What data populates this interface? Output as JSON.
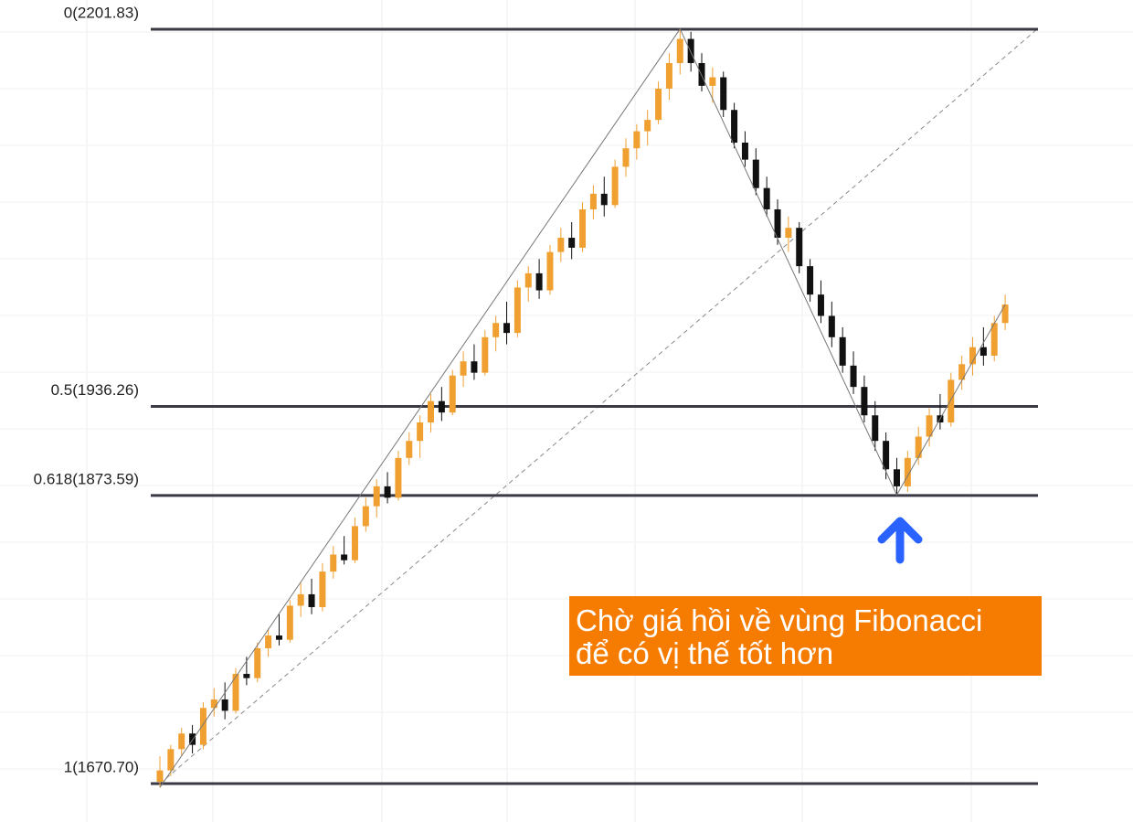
{
  "chart_data": {
    "type": "candlestick",
    "ylim": [
      1643.7,
      2222.4
    ],
    "up_color": "#f0a030",
    "down_color": "#111111",
    "levels": [
      {
        "value": 2201.83,
        "label": "0(2201.83)"
      },
      {
        "value": 1936.26,
        "label": "0.5(1936.26)"
      },
      {
        "value": 1873.59,
        "label": "0.618(1873.59)"
      },
      {
        "value": 1670.7,
        "label": "1(1670.70)"
      }
    ],
    "level_color": "#3a3a44",
    "annotation": [
      "Chờ giá hồi về vùng Fibonacci",
      "để có vị thế tốt hơn"
    ],
    "annotation_color": "#f57c00",
    "candles": [
      [
        1672,
        1690,
        1668,
        1680
      ],
      [
        1680,
        1698,
        1676,
        1695
      ],
      [
        1695,
        1710,
        1690,
        1706
      ],
      [
        1706,
        1712,
        1692,
        1698
      ],
      [
        1698,
        1728,
        1695,
        1724
      ],
      [
        1724,
        1738,
        1718,
        1730
      ],
      [
        1730,
        1742,
        1716,
        1722
      ],
      [
        1722,
        1752,
        1720,
        1748
      ],
      [
        1748,
        1760,
        1740,
        1745
      ],
      [
        1745,
        1770,
        1742,
        1766
      ],
      [
        1766,
        1780,
        1760,
        1775
      ],
      [
        1775,
        1790,
        1768,
        1772
      ],
      [
        1772,
        1800,
        1770,
        1796
      ],
      [
        1796,
        1812,
        1788,
        1804
      ],
      [
        1804,
        1815,
        1790,
        1795
      ],
      [
        1795,
        1826,
        1792,
        1820
      ],
      [
        1820,
        1838,
        1815,
        1832
      ],
      [
        1832,
        1845,
        1825,
        1828
      ],
      [
        1828,
        1858,
        1826,
        1852
      ],
      [
        1852,
        1872,
        1848,
        1866
      ],
      [
        1866,
        1885,
        1858,
        1880
      ],
      [
        1880,
        1890,
        1868,
        1872
      ],
      [
        1872,
        1905,
        1870,
        1900
      ],
      [
        1900,
        1918,
        1895,
        1912
      ],
      [
        1912,
        1930,
        1900,
        1925
      ],
      [
        1925,
        1945,
        1918,
        1940
      ],
      [
        1940,
        1950,
        1926,
        1932
      ],
      [
        1932,
        1962,
        1930,
        1958
      ],
      [
        1958,
        1975,
        1950,
        1968
      ],
      [
        1968,
        1980,
        1955,
        1960
      ],
      [
        1960,
        1990,
        1958,
        1985
      ],
      [
        1985,
        2000,
        1975,
        1995
      ],
      [
        1995,
        2010,
        1980,
        1988
      ],
      [
        1988,
        2025,
        1985,
        2020
      ],
      [
        2020,
        2035,
        2010,
        2030
      ],
      [
        2030,
        2040,
        2012,
        2018
      ],
      [
        2018,
        2050,
        2015,
        2045
      ],
      [
        2045,
        2062,
        2038,
        2055
      ],
      [
        2055,
        2066,
        2040,
        2048
      ],
      [
        2048,
        2080,
        2045,
        2075
      ],
      [
        2075,
        2092,
        2068,
        2086
      ],
      [
        2086,
        2098,
        2070,
        2078
      ],
      [
        2078,
        2110,
        2076,
        2105
      ],
      [
        2105,
        2125,
        2098,
        2118
      ],
      [
        2118,
        2135,
        2110,
        2130
      ],
      [
        2130,
        2145,
        2120,
        2138
      ],
      [
        2138,
        2165,
        2135,
        2160
      ],
      [
        2160,
        2185,
        2152,
        2178
      ],
      [
        2178,
        2202,
        2170,
        2195
      ],
      [
        2195,
        2200,
        2172,
        2178
      ],
      [
        2178,
        2185,
        2158,
        2162
      ],
      [
        2162,
        2175,
        2150,
        2168
      ],
      [
        2168,
        2172,
        2140,
        2145
      ],
      [
        2145,
        2150,
        2118,
        2122
      ],
      [
        2122,
        2130,
        2105,
        2110
      ],
      [
        2110,
        2118,
        2085,
        2090
      ],
      [
        2090,
        2098,
        2070,
        2075
      ],
      [
        2075,
        2082,
        2050,
        2055
      ],
      [
        2055,
        2070,
        2045,
        2062
      ],
      [
        2062,
        2066,
        2030,
        2035
      ],
      [
        2035,
        2040,
        2010,
        2015
      ],
      [
        2015,
        2025,
        1995,
        2000
      ],
      [
        2000,
        2010,
        1978,
        1985
      ],
      [
        1985,
        1992,
        1960,
        1965
      ],
      [
        1965,
        1975,
        1945,
        1950
      ],
      [
        1950,
        1958,
        1925,
        1930
      ],
      [
        1930,
        1940,
        1905,
        1912
      ],
      [
        1912,
        1918,
        1885,
        1892
      ],
      [
        1892,
        1900,
        1874,
        1880
      ],
      [
        1880,
        1905,
        1876,
        1900
      ],
      [
        1900,
        1922,
        1895,
        1915
      ],
      [
        1915,
        1935,
        1908,
        1930
      ],
      [
        1930,
        1945,
        1920,
        1925
      ],
      [
        1925,
        1960,
        1922,
        1955
      ],
      [
        1955,
        1972,
        1948,
        1966
      ],
      [
        1966,
        1985,
        1958,
        1978
      ],
      [
        1978,
        1992,
        1965,
        1972
      ],
      [
        1972,
        2000,
        1968,
        1995
      ],
      [
        1995,
        2015,
        1990,
        2008
      ]
    ]
  }
}
